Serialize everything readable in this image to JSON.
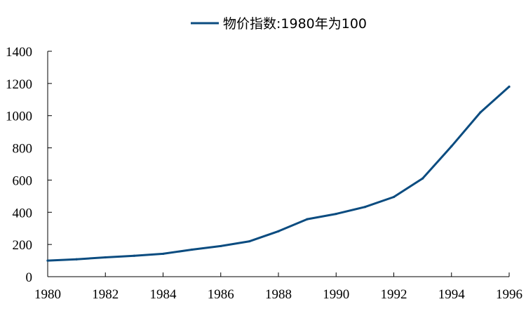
{
  "chart_data": {
    "type": "line",
    "x": [
      1980,
      1981,
      1982,
      1983,
      1984,
      1985,
      1986,
      1987,
      1988,
      1989,
      1990,
      1991,
      1992,
      1993,
      1994,
      1995,
      1996
    ],
    "series": [
      {
        "name": "物价指数:1980年为100",
        "values": [
          100,
          108,
          120,
          130,
          142,
          168,
          190,
          220,
          282,
          357,
          390,
          433,
          495,
          610,
          810,
          1020,
          1180
        ],
        "color": "#0b4c80"
      }
    ],
    "xlim": [
      1980,
      1996
    ],
    "ylim": [
      0,
      1400
    ],
    "x_ticks": [
      1980,
      1982,
      1984,
      1986,
      1988,
      1990,
      1992,
      1994,
      1996
    ],
    "y_ticks": [
      0,
      200,
      400,
      600,
      800,
      1000,
      1200,
      1400
    ],
    "grid": false,
    "legend_position": "top-center",
    "title": "",
    "xlabel": "",
    "ylabel": ""
  }
}
